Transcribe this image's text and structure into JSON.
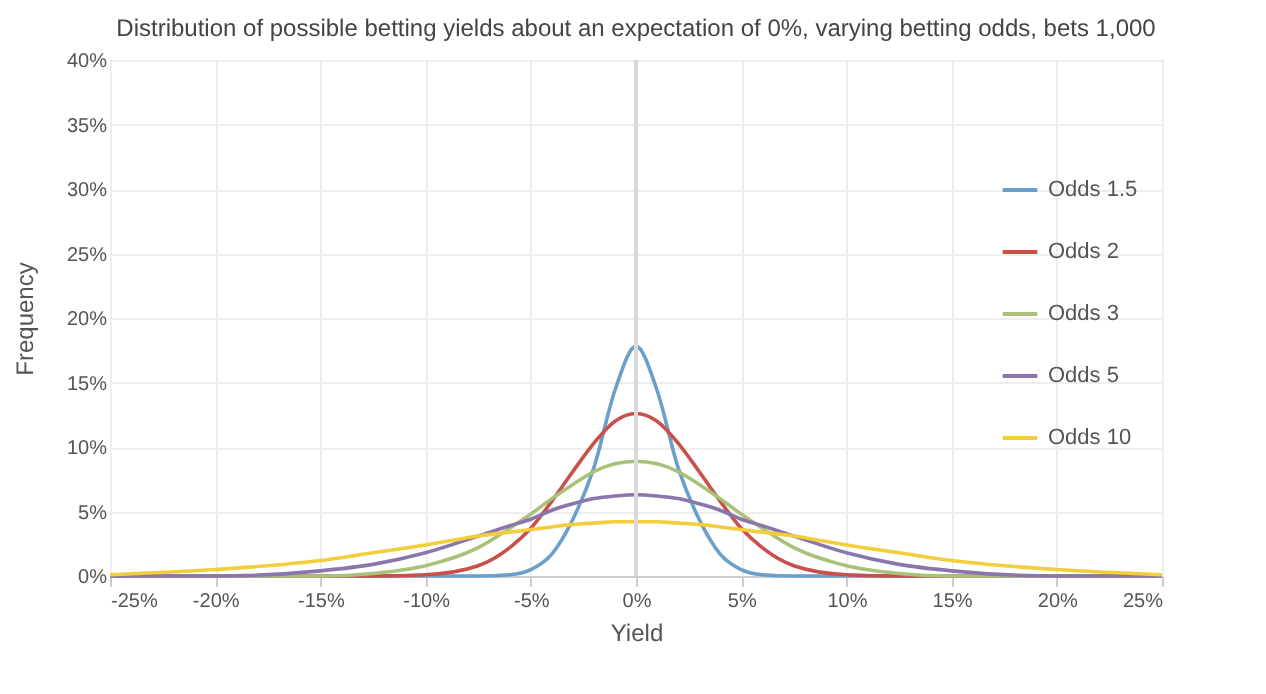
{
  "chart_data": {
    "type": "line",
    "title": "Distribution of possible betting yields about an expectation of 0%, varying betting odds, bets 1,000",
    "xlabel": "Yield",
    "ylabel": "Frequency",
    "x": [
      -25,
      -20,
      -15,
      -12.5,
      -10,
      -7.5,
      -6,
      -5,
      -4,
      -3,
      -2,
      -1,
      0,
      1,
      2,
      3,
      4,
      5,
      6,
      7.5,
      10,
      12.5,
      15,
      20,
      25
    ],
    "series": [
      {
        "name": "Odds 1.5",
        "color": "#6a9fca",
        "values": [
          0,
          0,
          0,
          0,
          0,
          0,
          0.1,
          0.5,
          1.7,
          4.4,
          8.4,
          14.4,
          17.8,
          14.4,
          8.4,
          4.4,
          1.7,
          0.5,
          0.1,
          0,
          0,
          0,
          0,
          0,
          0
        ]
      },
      {
        "name": "Odds 2",
        "color": "#c9504a",
        "values": [
          0,
          0,
          0,
          0,
          0.1,
          0.8,
          2.2,
          3.7,
          5.8,
          8.1,
          10.3,
          12.0,
          12.6,
          12.0,
          10.3,
          8.1,
          5.8,
          3.7,
          2.2,
          0.8,
          0.1,
          0,
          0,
          0,
          0
        ]
      },
      {
        "name": "Odds 3",
        "color": "#a9c27a",
        "values": [
          0,
          0,
          0,
          0.2,
          0.8,
          2.2,
          3.7,
          4.8,
          6.0,
          7.1,
          8.1,
          8.7,
          8.9,
          8.7,
          8.1,
          7.1,
          6.0,
          4.8,
          3.7,
          2.2,
          0.8,
          0.2,
          0,
          0,
          0
        ]
      },
      {
        "name": "Odds 5",
        "color": "#8a76ad",
        "values": [
          0,
          0,
          0.4,
          0.9,
          1.8,
          3.1,
          3.9,
          4.4,
          5.1,
          5.6,
          6.0,
          6.2,
          6.3,
          6.2,
          6.0,
          5.6,
          5.1,
          4.4,
          3.9,
          3.1,
          1.8,
          0.9,
          0.4,
          0,
          0
        ]
      },
      {
        "name": "Odds 10",
        "color": "#f2cd3c",
        "values": [
          0.1,
          0.5,
          1.2,
          1.8,
          2.4,
          3.1,
          3.4,
          3.6,
          3.8,
          4.0,
          4.1,
          4.2,
          4.2,
          4.2,
          4.1,
          4.0,
          3.8,
          3.6,
          3.4,
          3.1,
          2.4,
          1.8,
          1.2,
          0.5,
          0.1
        ]
      }
    ],
    "xlim": [
      -25,
      25
    ],
    "xticks": [
      {
        "value": -25,
        "label": "-25%"
      },
      {
        "value": -20,
        "label": "-20%"
      },
      {
        "value": -15,
        "label": "-15%"
      },
      {
        "value": -10,
        "label": "-10%"
      },
      {
        "value": -5,
        "label": "-5%"
      },
      {
        "value": 0,
        "label": "0%"
      },
      {
        "value": 5,
        "label": "5%"
      },
      {
        "value": 10,
        "label": "10%"
      },
      {
        "value": 15,
        "label": "15%"
      },
      {
        "value": 20,
        "label": "20%"
      },
      {
        "value": 25,
        "label": "25%"
      }
    ],
    "ylim": [
      0,
      40
    ],
    "yticks": [
      {
        "value": 0,
        "label": "0%"
      },
      {
        "value": 5,
        "label": "5%"
      },
      {
        "value": 10,
        "label": "10%"
      },
      {
        "value": 15,
        "label": "15%"
      },
      {
        "value": 20,
        "label": "20%"
      },
      {
        "value": 25,
        "label": "25%"
      },
      {
        "value": 30,
        "label": "30%"
      },
      {
        "value": 35,
        "label": "35%"
      },
      {
        "value": 40,
        "label": "40%"
      }
    ],
    "ref_lines": [
      {
        "axis": "x",
        "value": 0,
        "label": null,
        "color": "#d9d9d9"
      }
    ],
    "grid": true,
    "legend": "right",
    "marker": "none",
    "line_style": "solid"
  }
}
